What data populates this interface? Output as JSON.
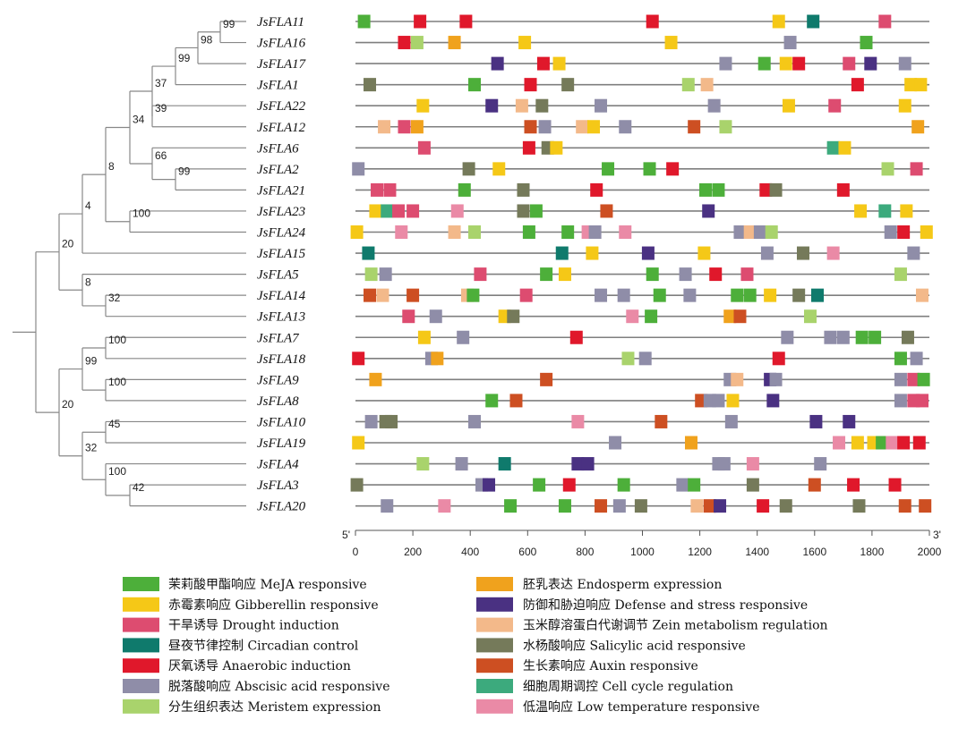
{
  "chart_data": {
    "type": "phylogeny-with-motif-map",
    "xlim": [
      0,
      2000
    ],
    "x_ticks": [
      0,
      200,
      400,
      600,
      800,
      1000,
      1200,
      1400,
      1600,
      1800,
      2000
    ],
    "end_labels": {
      "start": "5'",
      "end": "3'"
    },
    "genes": [
      "JsFLA11",
      "JsFLA16",
      "JsFLA17",
      "JsFLA1",
      "JsFLA22",
      "JsFLA12",
      "JsFLA6",
      "JsFLA2",
      "JsFLA21",
      "JsFLA23",
      "JsFLA24",
      "JsFLA15",
      "JsFLA5",
      "JsFLA14",
      "JsFLA13",
      "JsFLA7",
      "JsFLA18",
      "JsFLA9",
      "JsFLA8",
      "JsFLA10",
      "JsFLA19",
      "JsFLA4",
      "JsFLA3",
      "JsFLA20"
    ],
    "bootstrap_values": [
      "99",
      "98",
      "99",
      "37",
      "39",
      "34",
      "66",
      "99",
      "8",
      "100",
      "4",
      "20",
      "8",
      "32",
      "100",
      "99",
      "100",
      "20",
      "45",
      "32",
      "100",
      "42"
    ],
    "legend": [
      {
        "key": "meja",
        "label": "茉莉酸甲酯响应 MeJA responsive",
        "color": "#4daf3a"
      },
      {
        "key": "gib",
        "label": "赤霉素响应 Gibberellin responsive",
        "color": "#f5c817"
      },
      {
        "key": "drought",
        "label": "干旱诱导 Drought induction",
        "color": "#dd4c70"
      },
      {
        "key": "circ",
        "label": "昼夜节律控制 Circadian control",
        "color": "#0f7a6c"
      },
      {
        "key": "anaer",
        "label": "厌氧诱导 Anaerobic induction",
        "color": "#e0182b"
      },
      {
        "key": "aba",
        "label": "脱落酸响应 Abscisic acid responsive",
        "color": "#8f8da8"
      },
      {
        "key": "merist",
        "label": "分生组织表达 Meristem expression",
        "color": "#a9d36c"
      },
      {
        "key": "endo",
        "label": "胚乳表达 Endosperm expression",
        "color": "#f0a21d"
      },
      {
        "key": "defense",
        "label": "防御和胁迫响应 Defense and stress responsive",
        "color": "#4a3182"
      },
      {
        "key": "zein",
        "label": "玉米醇溶蛋白代谢调节 Zein metabolism regulation",
        "color": "#f3b98a"
      },
      {
        "key": "sal",
        "label": "水杨酸响应 Salicylic acid responsive",
        "color": "#757a5a"
      },
      {
        "key": "auxin",
        "label": "生长素响应 Auxin responsive",
        "color": "#cd4f22"
      },
      {
        "key": "cell",
        "label": "细胞周期调控 Cell cycle regulation",
        "color": "#3caa7d"
      },
      {
        "key": "lowtemp",
        "label": "低温响应 Low temperature responsive",
        "color": "#ea8aa6"
      }
    ],
    "motifs": [
      [
        [
          30,
          "meja"
        ],
        [
          225,
          "anaer"
        ],
        [
          385,
          "anaer"
        ],
        [
          1035,
          "anaer"
        ],
        [
          1475,
          "gib"
        ],
        [
          1595,
          "circ"
        ],
        [
          1845,
          "drought"
        ]
      ],
      [
        [
          170,
          "anaer"
        ],
        [
          215,
          "merist"
        ],
        [
          345,
          "endo"
        ],
        [
          590,
          "gib"
        ],
        [
          1100,
          "gib"
        ],
        [
          1515,
          "aba"
        ],
        [
          1780,
          "meja"
        ]
      ],
      [
        [
          495,
          "defense"
        ],
        [
          655,
          "anaer"
        ],
        [
          710,
          "gib"
        ],
        [
          1290,
          "aba"
        ],
        [
          1425,
          "meja"
        ],
        [
          1500,
          "gib"
        ],
        [
          1545,
          "anaer"
        ],
        [
          1720,
          "drought"
        ],
        [
          1795,
          "defense"
        ],
        [
          1915,
          "aba"
        ]
      ],
      [
        [
          50,
          "sal"
        ],
        [
          415,
          "meja"
        ],
        [
          610,
          "anaer"
        ],
        [
          740,
          "sal"
        ],
        [
          1160,
          "merist"
        ],
        [
          1225,
          "zein"
        ],
        [
          1750,
          "anaer"
        ],
        [
          1935,
          "gib"
        ],
        [
          1970,
          "gib"
        ]
      ],
      [
        [
          235,
          "gib"
        ],
        [
          475,
          "defense"
        ],
        [
          580,
          "zein"
        ],
        [
          650,
          "sal"
        ],
        [
          855,
          "aba"
        ],
        [
          1250,
          "aba"
        ],
        [
          1510,
          "gib"
        ],
        [
          1670,
          "drought"
        ],
        [
          1915,
          "gib"
        ]
      ],
      [
        [
          100,
          "zein"
        ],
        [
          170,
          "drought"
        ],
        [
          215,
          "endo"
        ],
        [
          610,
          "auxin"
        ],
        [
          660,
          "aba"
        ],
        [
          790,
          "zein"
        ],
        [
          830,
          "gib"
        ],
        [
          940,
          "aba"
        ],
        [
          1180,
          "auxin"
        ],
        [
          1290,
          "merist"
        ],
        [
          1960,
          "endo"
        ]
      ],
      [
        [
          240,
          "drought"
        ],
        [
          605,
          "anaer"
        ],
        [
          670,
          "sal"
        ],
        [
          700,
          "gib"
        ],
        [
          1665,
          "cell"
        ],
        [
          1705,
          "gib"
        ]
      ],
      [
        [
          10,
          "aba"
        ],
        [
          395,
          "sal"
        ],
        [
          500,
          "gib"
        ],
        [
          880,
          "meja"
        ],
        [
          1025,
          "meja"
        ],
        [
          1105,
          "anaer"
        ],
        [
          1855,
          "merist"
        ],
        [
          1955,
          "drought"
        ]
      ],
      [
        [
          75,
          "drought"
        ],
        [
          120,
          "drought"
        ],
        [
          380,
          "meja"
        ],
        [
          585,
          "sal"
        ],
        [
          840,
          "anaer"
        ],
        [
          1220,
          "meja"
        ],
        [
          1265,
          "meja"
        ],
        [
          1430,
          "anaer"
        ],
        [
          1465,
          "sal"
        ],
        [
          1700,
          "anaer"
        ]
      ],
      [
        [
          70,
          "gib"
        ],
        [
          110,
          "cell"
        ],
        [
          150,
          "drought"
        ],
        [
          200,
          "drought"
        ],
        [
          355,
          "lowtemp"
        ],
        [
          585,
          "sal"
        ],
        [
          630,
          "meja"
        ],
        [
          875,
          "auxin"
        ],
        [
          1230,
          "defense"
        ],
        [
          1760,
          "gib"
        ],
        [
          1845,
          "cell"
        ],
        [
          1920,
          "gib"
        ]
      ],
      [
        [
          5,
          "gib"
        ],
        [
          160,
          "lowtemp"
        ],
        [
          345,
          "zein"
        ],
        [
          415,
          "merist"
        ],
        [
          605,
          "meja"
        ],
        [
          740,
          "meja"
        ],
        [
          810,
          "lowtemp"
        ],
        [
          835,
          "aba"
        ],
        [
          940,
          "lowtemp"
        ],
        [
          1340,
          "aba"
        ],
        [
          1375,
          "zein"
        ],
        [
          1410,
          "aba"
        ],
        [
          1450,
          "merist"
        ],
        [
          1865,
          "aba"
        ],
        [
          1910,
          "anaer"
        ],
        [
          1990,
          "gib"
        ]
      ],
      [
        [
          45,
          "circ"
        ],
        [
          720,
          "circ"
        ],
        [
          825,
          "gib"
        ],
        [
          1020,
          "defense"
        ],
        [
          1215,
          "gib"
        ],
        [
          1435,
          "aba"
        ],
        [
          1560,
          "sal"
        ],
        [
          1665,
          "lowtemp"
        ],
        [
          1945,
          "aba"
        ]
      ],
      [
        [
          55,
          "merist"
        ],
        [
          105,
          "aba"
        ],
        [
          435,
          "drought"
        ],
        [
          665,
          "meja"
        ],
        [
          730,
          "gib"
        ],
        [
          1035,
          "meja"
        ],
        [
          1150,
          "aba"
        ],
        [
          1255,
          "anaer"
        ],
        [
          1365,
          "drought"
        ],
        [
          1900,
          "merist"
        ]
      ],
      [
        [
          50,
          "auxin"
        ],
        [
          95,
          "zein"
        ],
        [
          200,
          "auxin"
        ],
        [
          390,
          "zein"
        ],
        [
          410,
          "meja"
        ],
        [
          595,
          "drought"
        ],
        [
          855,
          "aba"
        ],
        [
          935,
          "aba"
        ],
        [
          1060,
          "meja"
        ],
        [
          1165,
          "aba"
        ],
        [
          1330,
          "meja"
        ],
        [
          1375,
          "meja"
        ],
        [
          1445,
          "gib"
        ],
        [
          1545,
          "sal"
        ],
        [
          1610,
          "circ"
        ],
        [
          1975,
          "zein"
        ]
      ],
      [
        [
          185,
          "drought"
        ],
        [
          280,
          "aba"
        ],
        [
          520,
          "gib"
        ],
        [
          550,
          "sal"
        ],
        [
          965,
          "lowtemp"
        ],
        [
          1030,
          "meja"
        ],
        [
          1305,
          "endo"
        ],
        [
          1340,
          "auxin"
        ],
        [
          1585,
          "merist"
        ]
      ],
      [
        [
          240,
          "gib"
        ],
        [
          375,
          "aba"
        ],
        [
          770,
          "anaer"
        ],
        [
          1505,
          "aba"
        ],
        [
          1655,
          "aba"
        ],
        [
          1700,
          "aba"
        ],
        [
          1765,
          "meja"
        ],
        [
          1810,
          "meja"
        ],
        [
          1925,
          "sal"
        ]
      ],
      [
        [
          10,
          "anaer"
        ],
        [
          265,
          "aba"
        ],
        [
          285,
          "endo"
        ],
        [
          950,
          "merist"
        ],
        [
          1010,
          "aba"
        ],
        [
          1475,
          "anaer"
        ],
        [
          1900,
          "meja"
        ],
        [
          1955,
          "aba"
        ]
      ],
      [
        [
          70,
          "endo"
        ],
        [
          665,
          "auxin"
        ],
        [
          1305,
          "aba"
        ],
        [
          1330,
          "zein"
        ],
        [
          1445,
          "defense"
        ],
        [
          1465,
          "aba"
        ],
        [
          1900,
          "aba"
        ],
        [
          1945,
          "drought"
        ],
        [
          1980,
          "meja"
        ]
      ],
      [
        [
          475,
          "meja"
        ],
        [
          560,
          "auxin"
        ],
        [
          1205,
          "auxin"
        ],
        [
          1235,
          "aba"
        ],
        [
          1265,
          "aba"
        ],
        [
          1315,
          "gib"
        ],
        [
          1455,
          "defense"
        ],
        [
          1900,
          "aba"
        ],
        [
          1945,
          "drought"
        ],
        [
          1975,
          "drought"
        ]
      ],
      [
        [
          55,
          "aba"
        ],
        [
          105,
          "sal"
        ],
        [
          125,
          "sal"
        ],
        [
          415,
          "aba"
        ],
        [
          775,
          "lowtemp"
        ],
        [
          1065,
          "auxin"
        ],
        [
          1310,
          "aba"
        ],
        [
          1605,
          "defense"
        ],
        [
          1720,
          "defense"
        ]
      ],
      [
        [
          10,
          "gib"
        ],
        [
          905,
          "aba"
        ],
        [
          1170,
          "endo"
        ],
        [
          1685,
          "lowtemp"
        ],
        [
          1750,
          "gib"
        ],
        [
          1805,
          "gib"
        ],
        [
          1835,
          "meja"
        ],
        [
          1870,
          "lowtemp"
        ],
        [
          1910,
          "anaer"
        ],
        [
          1965,
          "anaer"
        ]
      ],
      [
        [
          235,
          "merist"
        ],
        [
          370,
          "aba"
        ],
        [
          520,
          "circ"
        ],
        [
          775,
          "defense"
        ],
        [
          810,
          "defense"
        ],
        [
          1265,
          "aba"
        ],
        [
          1285,
          "aba"
        ],
        [
          1385,
          "lowtemp"
        ],
        [
          1620,
          "aba"
        ]
      ],
      [
        [
          5,
          "sal"
        ],
        [
          440,
          "aba"
        ],
        [
          465,
          "defense"
        ],
        [
          640,
          "meja"
        ],
        [
          745,
          "anaer"
        ],
        [
          935,
          "meja"
        ],
        [
          1140,
          "aba"
        ],
        [
          1180,
          "meja"
        ],
        [
          1385,
          "sal"
        ],
        [
          1600,
          "auxin"
        ],
        [
          1735,
          "anaer"
        ],
        [
          1880,
          "anaer"
        ]
      ],
      [
        [
          110,
          "aba"
        ],
        [
          310,
          "lowtemp"
        ],
        [
          540,
          "meja"
        ],
        [
          730,
          "meja"
        ],
        [
          855,
          "auxin"
        ],
        [
          920,
          "aba"
        ],
        [
          995,
          "sal"
        ],
        [
          1190,
          "zein"
        ],
        [
          1235,
          "auxin"
        ],
        [
          1270,
          "defense"
        ],
        [
          1420,
          "anaer"
        ],
        [
          1500,
          "sal"
        ],
        [
          1755,
          "sal"
        ],
        [
          1915,
          "auxin"
        ],
        [
          1985,
          "auxin"
        ]
      ]
    ]
  }
}
